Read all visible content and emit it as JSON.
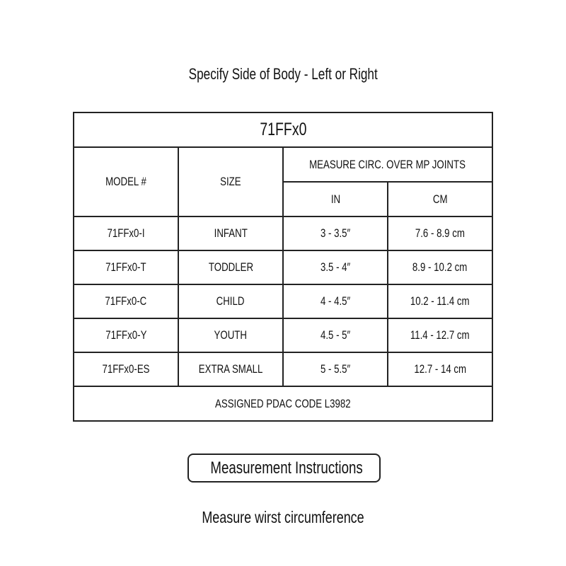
{
  "subtitle": "Specify Side of Body - Left or Right",
  "table": {
    "title": "71FFx0",
    "headers": {
      "model": "MODEL #",
      "size": "SIZE",
      "measure": "MEASURE CIRC. OVER MP JOINTS",
      "in": "IN",
      "cm": "CM"
    },
    "rows": [
      {
        "model": "71FFx0-I",
        "size": "INFANT",
        "in": "3 - 3.5″",
        "cm": "7.6 - 8.9 cm"
      },
      {
        "model": "71FFx0-T",
        "size": "TODDLER",
        "in": "3.5 - 4″",
        "cm": "8.9 - 10.2 cm"
      },
      {
        "model": "71FFx0-C",
        "size": "CHILD",
        "in": "4 - 4.5″",
        "cm": "10.2 - 11.4 cm"
      },
      {
        "model": "71FFx0-Y",
        "size": "YOUTH",
        "in": "4.5 - 5″",
        "cm": "11.4 - 12.7 cm"
      },
      {
        "model": "71FFx0-ES",
        "size": "EXTRA SMALL",
        "in": "5 - 5.5″",
        "cm": "12.7 - 14 cm"
      }
    ],
    "footer": "ASSIGNED PDAC CODE L3982"
  },
  "instructions_button": "Measurement Instructions",
  "instruction_text": "Measure wirst circumference"
}
